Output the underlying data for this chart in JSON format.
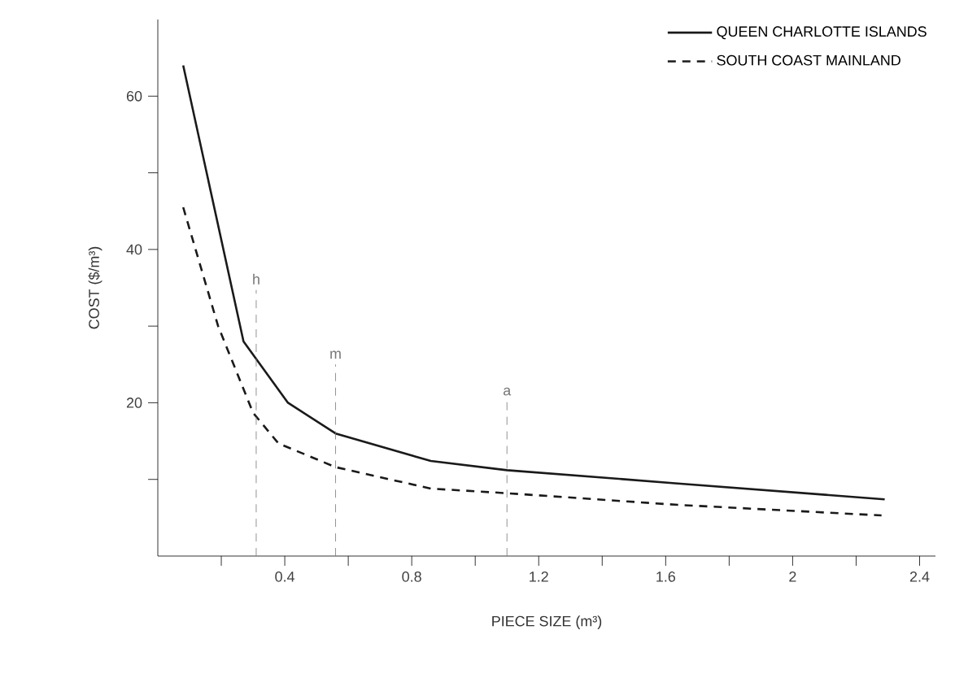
{
  "chart_data": {
    "type": "line",
    "xlabel": "PIECE SIZE (m³)",
    "ylabel": "COST ($/m³)",
    "xlim": [
      0,
      2.45
    ],
    "ylim": [
      0,
      70
    ],
    "xticks": [
      {
        "value": 0.2,
        "label": null
      },
      {
        "value": 0.4,
        "label": "0.4"
      },
      {
        "value": 0.6,
        "label": null
      },
      {
        "value": 0.8,
        "label": "0.8"
      },
      {
        "value": 1.0,
        "label": null
      },
      {
        "value": 1.2,
        "label": "1.2"
      },
      {
        "value": 1.4,
        "label": null
      },
      {
        "value": 1.6,
        "label": "1.6"
      },
      {
        "value": 1.8,
        "label": null
      },
      {
        "value": 2.0,
        "label": "2"
      },
      {
        "value": 2.2,
        "label": null
      },
      {
        "value": 2.4,
        "label": "2.4"
      }
    ],
    "yticks": [
      {
        "value": 10,
        "label": null
      },
      {
        "value": 20,
        "label": "20"
      },
      {
        "value": 30,
        "label": null
      },
      {
        "value": 40,
        "label": "40"
      },
      {
        "value": 50,
        "label": null
      },
      {
        "value": 60,
        "label": "60"
      }
    ],
    "legend": "top right",
    "marker": "none",
    "grid": false,
    "series": [
      {
        "name": "QUEEN CHARLOTTE ISLANDS",
        "color": "#1a1a1a",
        "line_style": "solid",
        "x": [
          0.08,
          0.27,
          0.41,
          0.56,
          0.86,
          1.1,
          1.63,
          2.29
        ],
        "values": [
          64,
          28,
          20,
          16,
          12.4,
          11.2,
          9.5,
          7.4
        ]
      },
      {
        "name": "SOUTH COAST MAINLAND",
        "color": "#1a1a1a",
        "line_style": "dashed",
        "x": [
          0.08,
          0.19,
          0.3,
          0.38,
          0.56,
          0.86,
          1.1,
          1.63,
          2.28
        ],
        "values": [
          45.5,
          30,
          18.7,
          14.7,
          11.6,
          8.8,
          8.2,
          6.7,
          5.3
        ]
      }
    ],
    "ref_lines": [
      {
        "axis": "x",
        "value": 0.31,
        "label": "h",
        "color": "#777777",
        "line_style": "dashed"
      },
      {
        "axis": "x",
        "value": 0.56,
        "label": "m",
        "color": "#777777",
        "line_style": "dashed"
      },
      {
        "axis": "x",
        "value": 1.1,
        "label": "a",
        "color": "#777777",
        "line_style": "dashed"
      }
    ]
  }
}
